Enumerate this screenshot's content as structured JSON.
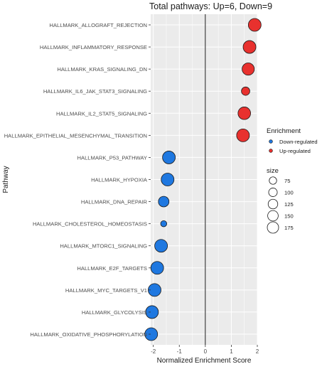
{
  "chart_data": {
    "type": "scatter",
    "title": "Total pathways: Up=6, Down=9",
    "xlabel": "Normalized Enrichment Score",
    "ylabel": "Pathway",
    "xlim": [
      -2.1,
      2.0
    ],
    "x_ticks": [
      -2,
      -1,
      0,
      1,
      2
    ],
    "x_tick_labels": [
      "-2",
      "-1",
      "0",
      "1",
      "2"
    ],
    "reference_line_x": 0,
    "grid": true,
    "legend_placement": "right",
    "colors": {
      "up": "#e8312e",
      "down": "#1f78e0",
      "panel": "#ebebeb",
      "grid": "#ffffff",
      "outline": "#1a1a1a"
    },
    "legend": {
      "enrichment_title": "Enrichment",
      "enrichment_items": [
        {
          "label": "Down-regulated",
          "color": "#1f78e0"
        },
        {
          "label": "Up-regulated",
          "color": "#e8312e"
        }
      ],
      "size_title": "size",
      "size_items": [
        75,
        100,
        125,
        150,
        175
      ]
    },
    "points": [
      {
        "pathway": "HALLMARK_ALLOGRAFT_REJECTION",
        "nes": 1.9,
        "size": 175,
        "direction": "up"
      },
      {
        "pathway": "HALLMARK_INFLAMMATORY_RESPONSE",
        "nes": 1.7,
        "size": 175,
        "direction": "up"
      },
      {
        "pathway": "HALLMARK_KRAS_SIGNALING_DN",
        "nes": 1.65,
        "size": 160,
        "direction": "up"
      },
      {
        "pathway": "HALLMARK_IL6_JAK_STAT3_SIGNALING",
        "nes": 1.55,
        "size": 75,
        "direction": "up"
      },
      {
        "pathway": "HALLMARK_IL2_STAT5_SIGNALING",
        "nes": 1.5,
        "size": 170,
        "direction": "up"
      },
      {
        "pathway": "HALLMARK_EPITHELIAL_MESENCHYMAL_TRANSITION",
        "nes": 1.45,
        "size": 175,
        "direction": "up"
      },
      {
        "pathway": "HALLMARK_P53_PATHWAY",
        "nes": -1.4,
        "size": 175,
        "direction": "down"
      },
      {
        "pathway": "HALLMARK_HYPOXIA",
        "nes": -1.45,
        "size": 175,
        "direction": "down"
      },
      {
        "pathway": "HALLMARK_DNA_REPAIR",
        "nes": -1.6,
        "size": 120,
        "direction": "down"
      },
      {
        "pathway": "HALLMARK_CHOLESTEROL_HOMEOSTASIS",
        "nes": -1.6,
        "size": 40,
        "direction": "down"
      },
      {
        "pathway": "HALLMARK_MTORC1_SIGNALING",
        "nes": -1.7,
        "size": 175,
        "direction": "down"
      },
      {
        "pathway": "HALLMARK_E2F_TARGETS",
        "nes": -1.85,
        "size": 175,
        "direction": "down"
      },
      {
        "pathway": "HALLMARK_MYC_TARGETS_V1",
        "nes": -1.95,
        "size": 175,
        "direction": "down"
      },
      {
        "pathway": "HALLMARK_GLYCOLYSIS",
        "nes": -2.05,
        "size": 175,
        "direction": "down"
      },
      {
        "pathway": "HALLMARK_OXIDATIVE_PHOSPHORYLATION",
        "nes": -2.08,
        "size": 175,
        "direction": "down"
      }
    ]
  }
}
